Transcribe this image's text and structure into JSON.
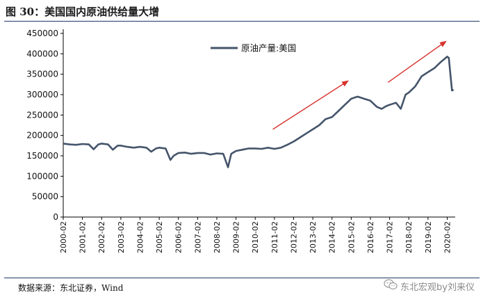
{
  "figure": {
    "title": "图 30：美国国内原油供给量大增",
    "source": "数据来源：东北证券，Wind",
    "watermark": "东北宏观by刘来仪"
  },
  "colors": {
    "series": "#44546a",
    "arrow": "#d6322d",
    "rule": "#1f3864"
  },
  "chart_data": {
    "type": "line",
    "title": "",
    "xlabel": "",
    "ylabel": "",
    "ylim": [
      0,
      450000
    ],
    "yticks": [
      0,
      50000,
      100000,
      150000,
      200000,
      250000,
      300000,
      350000,
      400000,
      450000
    ],
    "ytick_labels": [
      "0",
      "50000",
      "100000",
      "150000",
      "200000",
      "250000",
      "300000",
      "350000",
      "400000",
      "450000"
    ],
    "xtick_labels": [
      "2000-02",
      "2001-02",
      "2002-02",
      "2003-02",
      "2004-02",
      "2005-02",
      "2006-02",
      "2007-02",
      "2008-02",
      "2009-02",
      "2010-02",
      "2011-02",
      "2012-02",
      "2013-02",
      "2014-02",
      "2015-02",
      "2016-02",
      "2017-02",
      "2018-02",
      "2019-02",
      "2020-02"
    ],
    "legend_position": "top-center",
    "grid": false,
    "annotations": [
      "upward red arrow 2011-2015",
      "upward red arrow 2017-2020"
    ],
    "series": [
      {
        "name": "原油产量:美国",
        "points": [
          [
            "2000-02",
            180000
          ],
          [
            "2000-06",
            178000
          ],
          [
            "2000-10",
            177000
          ],
          [
            "2001-02",
            179000
          ],
          [
            "2001-06",
            178000
          ],
          [
            "2001-09",
            166000
          ],
          [
            "2001-12",
            178000
          ],
          [
            "2002-02",
            180000
          ],
          [
            "2002-06",
            178000
          ],
          [
            "2002-09",
            165000
          ],
          [
            "2002-12",
            175000
          ],
          [
            "2003-02",
            175000
          ],
          [
            "2003-06",
            172000
          ],
          [
            "2003-10",
            170000
          ],
          [
            "2004-02",
            172000
          ],
          [
            "2004-06",
            170000
          ],
          [
            "2004-09",
            160000
          ],
          [
            "2004-12",
            168000
          ],
          [
            "2005-02",
            170000
          ],
          [
            "2005-06",
            168000
          ],
          [
            "2005-09",
            140000
          ],
          [
            "2005-11",
            150000
          ],
          [
            "2006-02",
            157000
          ],
          [
            "2006-06",
            158000
          ],
          [
            "2006-10",
            155000
          ],
          [
            "2007-02",
            157000
          ],
          [
            "2007-06",
            157000
          ],
          [
            "2007-10",
            153000
          ],
          [
            "2008-02",
            156000
          ],
          [
            "2008-06",
            155000
          ],
          [
            "2008-09",
            122000
          ],
          [
            "2008-11",
            155000
          ],
          [
            "2009-02",
            162000
          ],
          [
            "2009-06",
            165000
          ],
          [
            "2009-10",
            168000
          ],
          [
            "2010-02",
            168000
          ],
          [
            "2010-06",
            167000
          ],
          [
            "2010-10",
            170000
          ],
          [
            "2011-02",
            167000
          ],
          [
            "2011-06",
            170000
          ],
          [
            "2011-10",
            177000
          ],
          [
            "2012-02",
            185000
          ],
          [
            "2012-06",
            195000
          ],
          [
            "2012-10",
            205000
          ],
          [
            "2013-02",
            215000
          ],
          [
            "2013-06",
            225000
          ],
          [
            "2013-10",
            240000
          ],
          [
            "2014-02",
            245000
          ],
          [
            "2014-06",
            260000
          ],
          [
            "2014-10",
            275000
          ],
          [
            "2015-02",
            290000
          ],
          [
            "2015-06",
            295000
          ],
          [
            "2015-10",
            290000
          ],
          [
            "2016-02",
            285000
          ],
          [
            "2016-06",
            270000
          ],
          [
            "2016-09",
            265000
          ],
          [
            "2016-12",
            272000
          ],
          [
            "2017-02",
            275000
          ],
          [
            "2017-06",
            280000
          ],
          [
            "2017-09",
            265000
          ],
          [
            "2017-12",
            300000
          ],
          [
            "2018-02",
            305000
          ],
          [
            "2018-06",
            320000
          ],
          [
            "2018-10",
            345000
          ],
          [
            "2019-02",
            355000
          ],
          [
            "2019-06",
            365000
          ],
          [
            "2019-10",
            380000
          ],
          [
            "2020-02",
            393000
          ],
          [
            "2020-03",
            390000
          ],
          [
            "2020-04",
            350000
          ],
          [
            "2020-05",
            310000
          ],
          [
            "2020-06",
            312000
          ]
        ]
      }
    ]
  }
}
